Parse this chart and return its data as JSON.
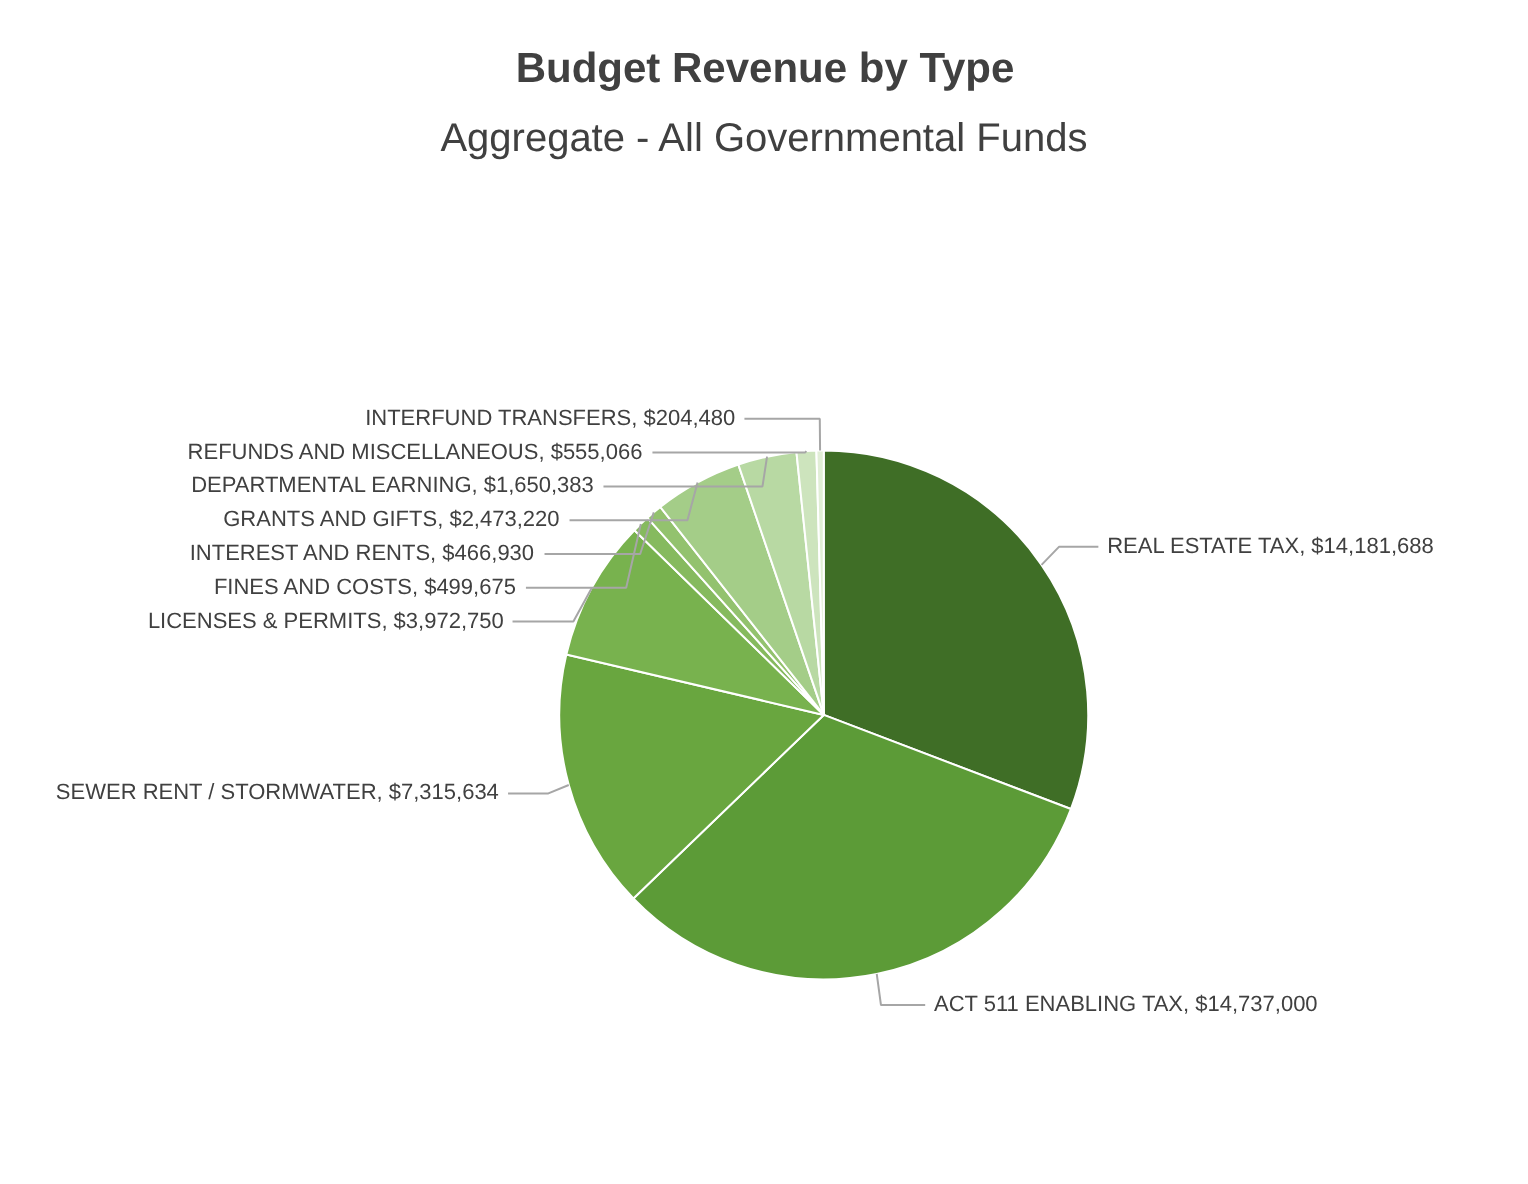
{
  "chart_data": {
    "type": "pie",
    "title": "Budget Revenue by Type",
    "subtitle": "Aggregate - All Governmental Funds",
    "categories": [
      "REAL ESTATE TAX",
      "ACT 511 ENABLING TAX",
      "SEWER RENT / STORMWATER",
      "LICENSES & PERMITS",
      "FINES AND COSTS",
      "INTEREST AND RENTS",
      "GRANTS AND GIFTS",
      "DEPARTMENTAL EARNING",
      "REFUNDS AND MISCELLANEOUS",
      "INTERFUND TRANSFERS"
    ],
    "values": [
      14181688,
      14737000,
      7315634,
      3972750,
      499675,
      466930,
      2473220,
      1650383,
      555066,
      204480
    ],
    "value_labels": [
      "$14,181,688",
      "$14,737,000",
      "$7,315,634",
      "$3,972,750",
      "$499,675",
      "$466,930",
      "$2,473,220",
      "$1,650,383",
      "$555,066",
      "$204,480"
    ],
    "colors": [
      "#3f6e26",
      "#5c9b37",
      "#69a63f",
      "#78b24e",
      "#86ba5e",
      "#93c26e",
      "#a4cd88",
      "#b8d9a3",
      "#cde4bd",
      "#e1eed6"
    ]
  }
}
